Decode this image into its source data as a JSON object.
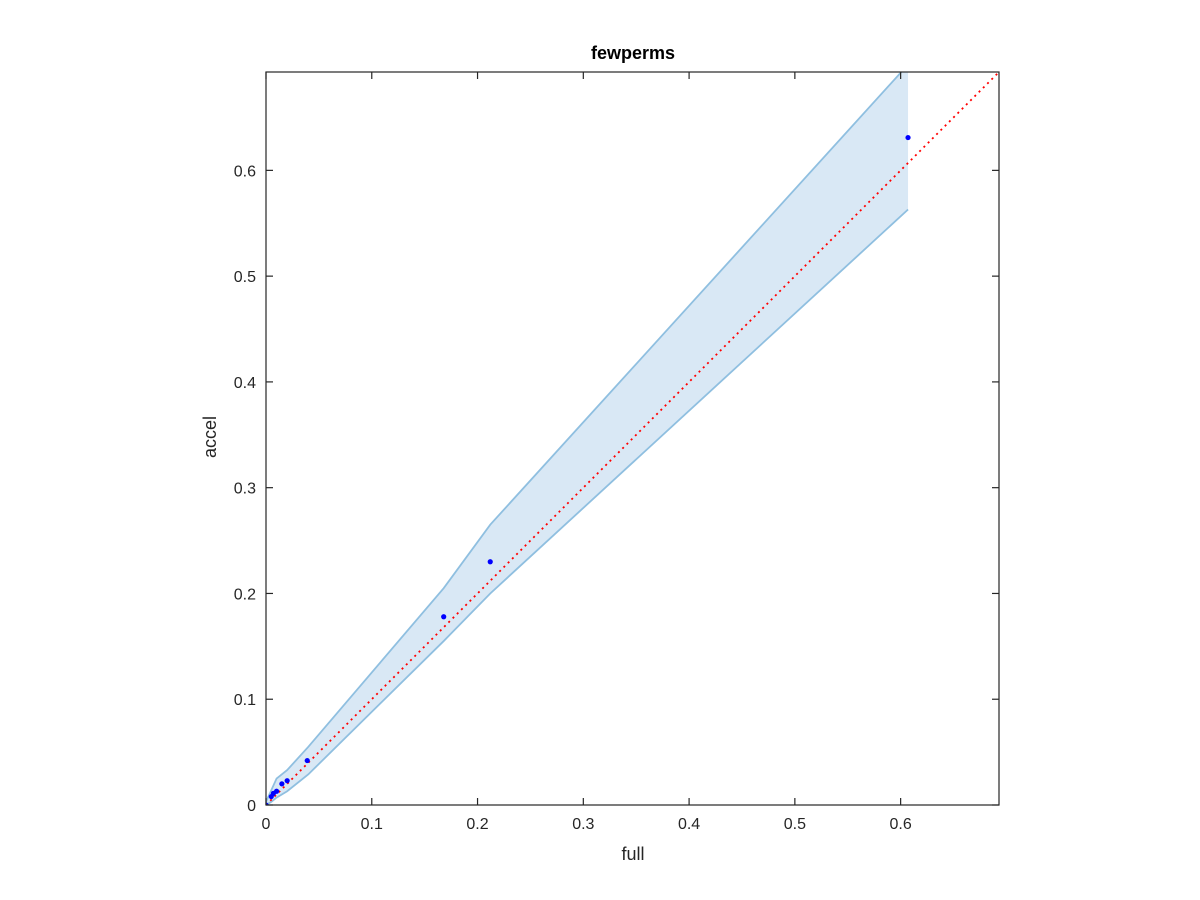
{
  "chart_data": {
    "type": "scatter",
    "title": "fewperms",
    "xlabel": "full",
    "ylabel": "accel",
    "xlim": [
      0,
      0.693
    ],
    "ylim": [
      0,
      0.693
    ],
    "xticks": [
      0,
      0.1,
      0.2,
      0.3,
      0.4,
      0.5,
      0.6
    ],
    "yticks": [
      0,
      0.1,
      0.2,
      0.3,
      0.4,
      0.5,
      0.6
    ],
    "xtick_labels": [
      "0",
      "0.1",
      "0.2",
      "0.3",
      "0.4",
      "0.5",
      "0.6"
    ],
    "ytick_labels": [
      "0",
      "0.1",
      "0.2",
      "0.3",
      "0.4",
      "0.5",
      "0.6"
    ],
    "grid": false,
    "colors": {
      "points": "#0000ff",
      "band_fill": "#d9e8f5",
      "band_edge": "#8fbfe0",
      "identity_line": "#ff0000",
      "axes": "#262626"
    },
    "points": {
      "x": [
        0.0,
        0.005,
        0.007,
        0.01,
        0.015,
        0.02,
        0.039,
        0.168,
        0.212,
        0.607
      ],
      "y": [
        0.0,
        0.008,
        0.011,
        0.013,
        0.02,
        0.023,
        0.042,
        0.178,
        0.23,
        0.631
      ]
    },
    "band": {
      "x": [
        0.0,
        0.005,
        0.01,
        0.02,
        0.04,
        0.168,
        0.212,
        0.607
      ],
      "upper": [
        0.003,
        0.014,
        0.025,
        0.033,
        0.055,
        0.205,
        0.265,
        0.7
      ],
      "lower": [
        0.0,
        0.003,
        0.007,
        0.013,
        0.029,
        0.155,
        0.2,
        0.563
      ]
    },
    "identity_line": {
      "x": [
        0,
        0.693
      ],
      "y": [
        0,
        0.693
      ],
      "style": "dotted"
    }
  }
}
